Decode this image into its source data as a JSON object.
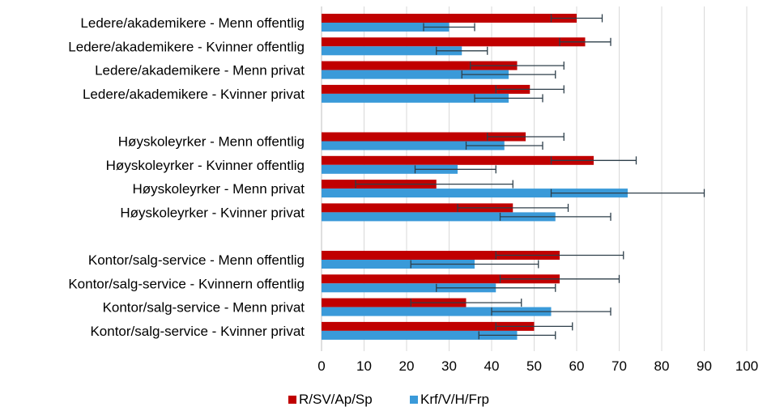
{
  "chart_data": {
    "type": "bar",
    "orientation": "horizontal",
    "categories": [
      "Ledere/akademikere - Menn offentlig",
      "Ledere/akademikere - Kvinner offentlig",
      "Ledere/akademikere - Menn privat",
      "Ledere/akademikere - Kvinner privat",
      "",
      "Høyskoleyrker - Menn offentlig",
      "Høyskoleyrker - Kvinner offentlig",
      "Høyskoleyrker - Menn privat",
      "Høyskoleyrker - Kvinner privat",
      "",
      "Kontor/salg-service - Menn offentlig",
      "Kontor/salg-service - Kvinnern offentlig",
      "Kontor/salg-service - Menn privat",
      "Kontor/salg-service - Kvinner privat"
    ],
    "series": [
      {
        "name": "R/SV/Ap/Sp",
        "color": "#c00000",
        "values": [
          60,
          62,
          46,
          49,
          null,
          48,
          64,
          27,
          45,
          null,
          56,
          56,
          34,
          50
        ],
        "error_low": [
          54,
          56,
          35,
          41,
          null,
          39,
          54,
          8,
          32,
          null,
          41,
          42,
          21,
          41
        ],
        "error_high": [
          66,
          68,
          57,
          57,
          null,
          57,
          74,
          45,
          58,
          null,
          71,
          70,
          47,
          59
        ]
      },
      {
        "name": "Krf/V/H/Frp",
        "color": "#3a9ad9",
        "values": [
          30,
          33,
          44,
          44,
          null,
          43,
          32,
          72,
          55,
          null,
          36,
          41,
          54,
          46
        ],
        "error_low": [
          24,
          27,
          33,
          36,
          null,
          34,
          22,
          54,
          42,
          null,
          21,
          27,
          40,
          37
        ],
        "error_high": [
          36,
          39,
          55,
          52,
          null,
          52,
          41,
          90,
          68,
          null,
          51,
          55,
          68,
          55
        ]
      }
    ],
    "xlim": [
      0,
      100
    ],
    "xticks": [
      "0",
      "10",
      "20",
      "30",
      "40",
      "50",
      "60",
      "70",
      "80",
      "90",
      "100"
    ],
    "grid": "vertical",
    "legend": "bottom",
    "title": "",
    "xlabel": "",
    "ylabel": ""
  }
}
